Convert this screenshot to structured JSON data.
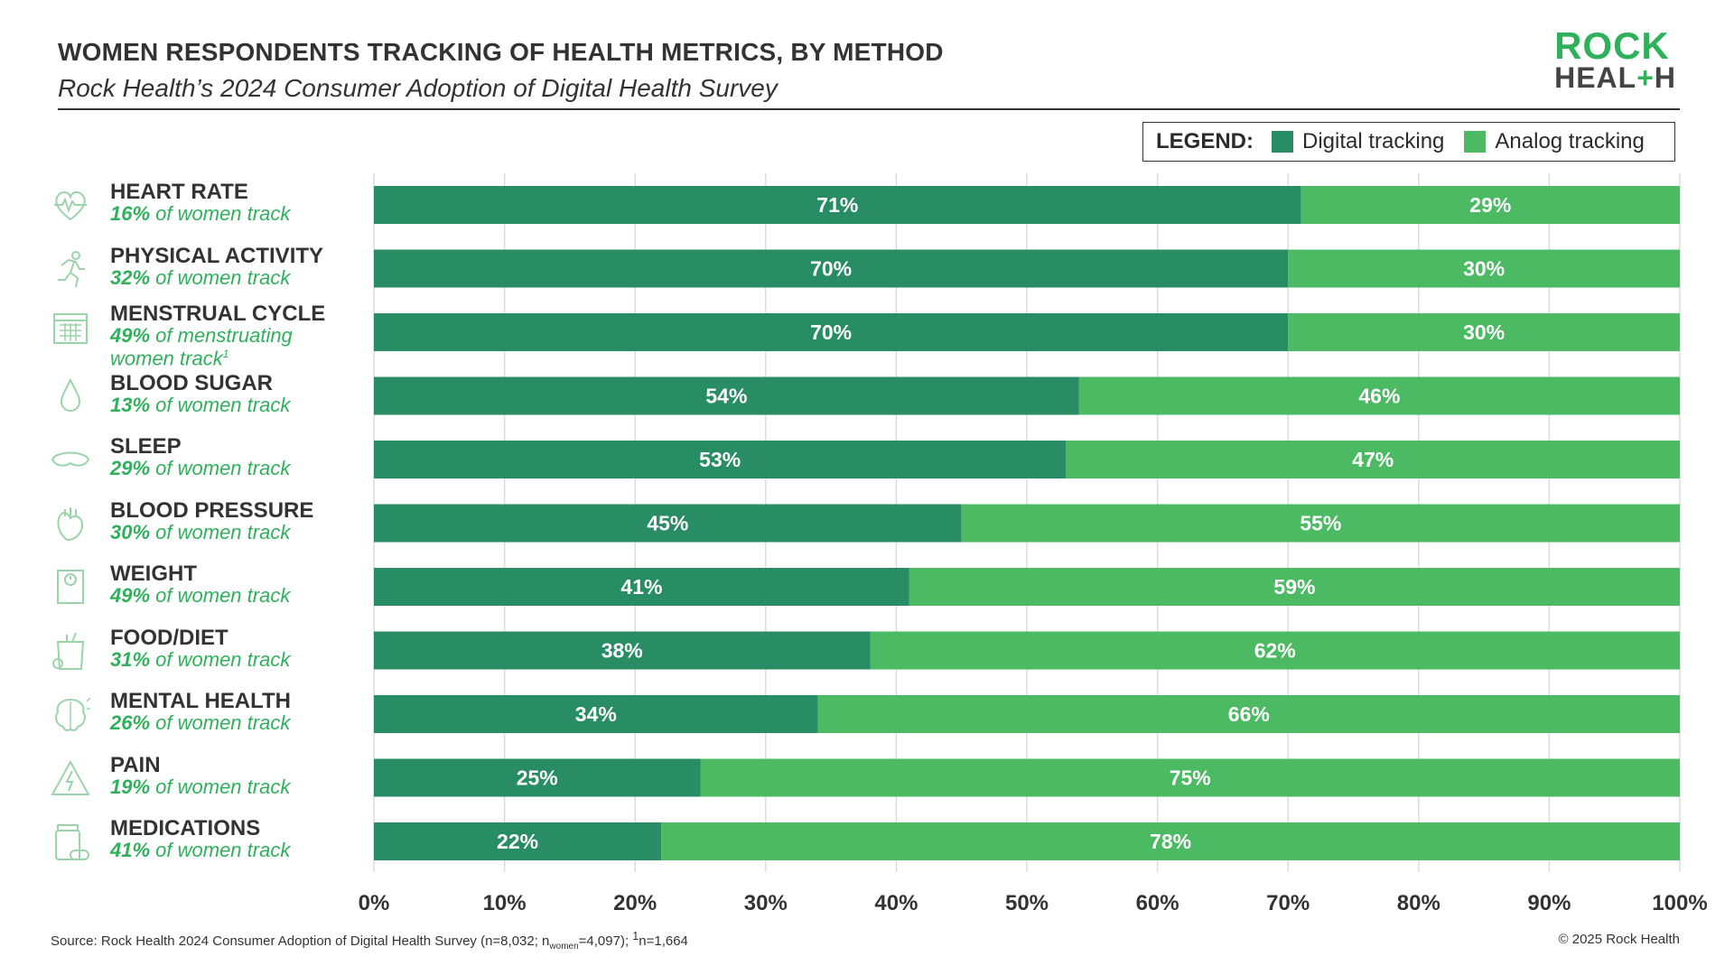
{
  "header": {
    "title": "WOMEN RESPONDENTS TRACKING OF HEALTH METRICS, BY METHOD",
    "subtitle": "Rock Health’s 2024 Consumer Adoption of Digital Health Survey"
  },
  "logo": {
    "line1": "ROCK",
    "line2a": "HEAL",
    "line2b": "+",
    "line2c": "H"
  },
  "legend": {
    "heading": "LEGEND:",
    "items": [
      {
        "label": "Digital tracking",
        "color": "#288c65"
      },
      {
        "label": "Analog tracking",
        "color": "#4cb963"
      }
    ]
  },
  "categories": [
    {
      "name": "HEART RATE",
      "pct": "16%",
      "rest": "of women track",
      "icon": "heart-rate-icon"
    },
    {
      "name": "PHYSICAL ACTIVITY",
      "pct": "32%",
      "rest": "of women track",
      "icon": "running-person-icon"
    },
    {
      "name": "MENSTRUAL CYCLE",
      "pct": "49%",
      "rest": "of menstruating women track",
      "note": "1",
      "icon": "calendar-icon"
    },
    {
      "name": "BLOOD SUGAR",
      "pct": "13%",
      "rest": "of women track",
      "icon": "blood-drop-icon"
    },
    {
      "name": "SLEEP",
      "pct": "29%",
      "rest": "of women track",
      "icon": "sleep-mask-icon"
    },
    {
      "name": "BLOOD PRESSURE",
      "pct": "30%",
      "rest": "of women track",
      "icon": "heart-organ-icon"
    },
    {
      "name": "WEIGHT",
      "pct": "49%",
      "rest": "of women track",
      "icon": "scale-icon"
    },
    {
      "name": "FOOD/DIET",
      "pct": "31%",
      "rest": "of women track",
      "icon": "grocery-bag-icon"
    },
    {
      "name": "MENTAL HEALTH",
      "pct": "26%",
      "rest": "of women track",
      "icon": "brain-icon"
    },
    {
      "name": "PAIN",
      "pct": "19%",
      "rest": "of women track",
      "icon": "pain-triangle-icon"
    },
    {
      "name": "MEDICATIONS",
      "pct": "41%",
      "rest": "of women track",
      "icon": "pill-bottle-icon"
    }
  ],
  "chart_data": {
    "type": "bar",
    "orientation": "horizontal",
    "stacked": true,
    "categories": [
      "HEART RATE",
      "PHYSICAL ACTIVITY",
      "MENSTRUAL CYCLE",
      "BLOOD SUGAR",
      "SLEEP",
      "BLOOD PRESSURE",
      "WEIGHT",
      "FOOD/DIET",
      "MENTAL HEALTH",
      "PAIN",
      "MEDICATIONS"
    ],
    "series": [
      {
        "name": "Digital tracking",
        "color": "#288c65",
        "values": [
          71,
          70,
          70,
          54,
          53,
          45,
          41,
          38,
          34,
          25,
          22
        ]
      },
      {
        "name": "Analog tracking",
        "color": "#4cb963",
        "values": [
          29,
          30,
          30,
          46,
          47,
          55,
          59,
          62,
          66,
          75,
          78
        ]
      }
    ],
    "xlim": [
      0,
      100
    ],
    "xticks": [
      "0%",
      "10%",
      "20%",
      "30%",
      "40%",
      "50%",
      "60%",
      "70%",
      "80%",
      "90%",
      "100%"
    ],
    "grid": true
  },
  "footer": {
    "source_a": "Source: Rock Health 2024 Consumer Adoption of Digital Health Survey (n=8,032; n",
    "source_sub": "women",
    "source_b": "=4,097); ",
    "source_sup": "1",
    "source_c": "n=1,664",
    "copyright": "© 2025 Rock Health"
  }
}
